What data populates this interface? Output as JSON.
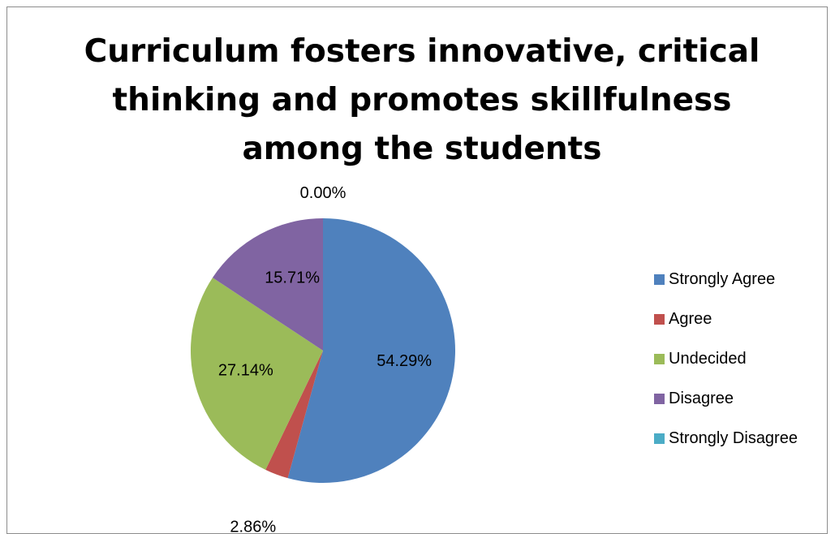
{
  "chart_data": {
    "type": "pie",
    "title": "Curriculum fosters innovative, critical thinking and promotes skillfulness among the students",
    "categories": [
      "Strongly Agree",
      "Agree",
      "Undecided",
      "Disagree",
      "Strongly Disagree"
    ],
    "values": [
      54.29,
      2.86,
      27.14,
      15.71,
      0.0
    ],
    "data_labels": [
      "54.29%",
      "2.86%",
      "27.14%",
      "15.71%",
      "0.00%"
    ],
    "colors": [
      "#4f81bd",
      "#c0504d",
      "#9bbb59",
      "#8064a2",
      "#4bacc6"
    ],
    "legend_position": "right",
    "start_angle": "12 o'clock",
    "direction": "clockwise"
  }
}
